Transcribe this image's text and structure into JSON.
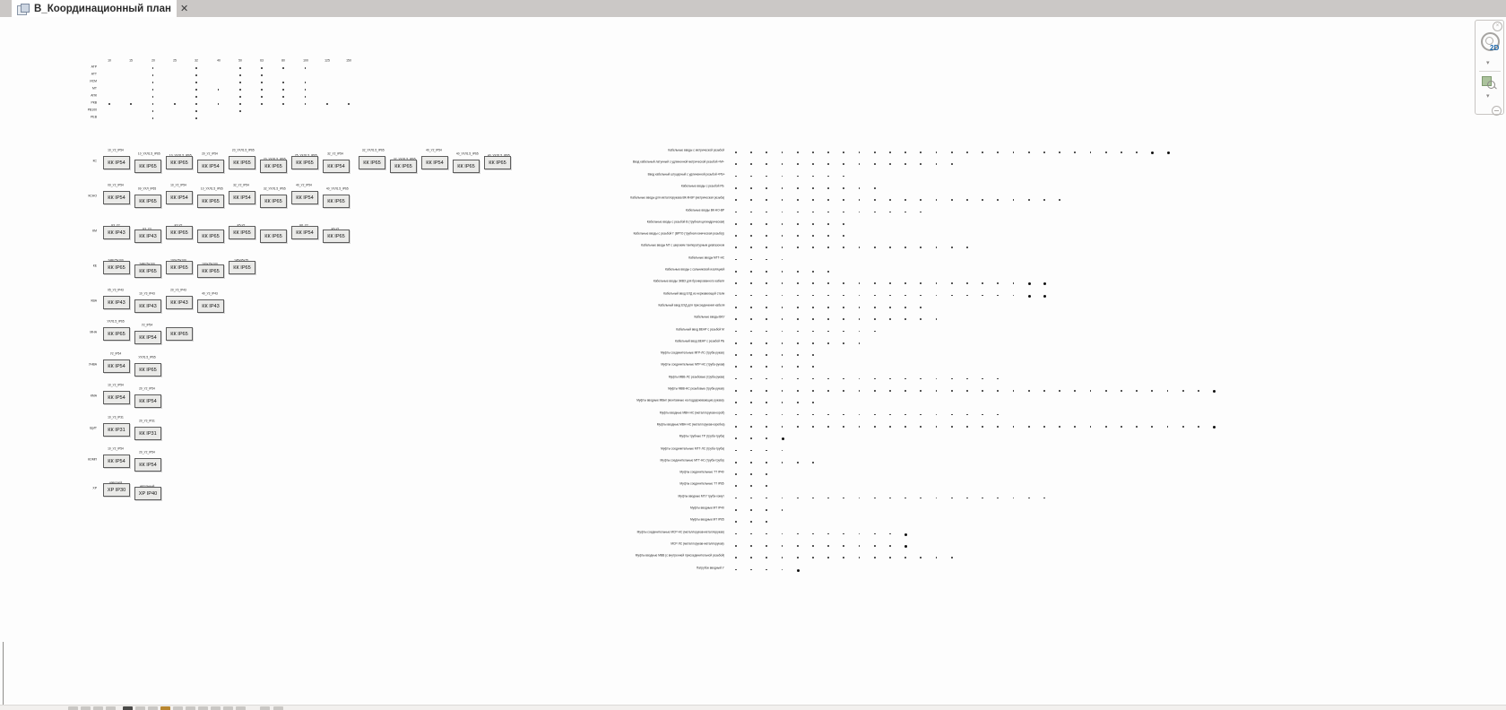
{
  "tab": {
    "title": "В_Координационный план",
    "close_glyph": "✕"
  },
  "colors": {
    "tabbar_bg": "#cbc8c6",
    "tab_active_bg": "#ffffff",
    "canvas_bg": "#fdfdfd",
    "box_fill": "#eaeae8",
    "box_border": "#5d5d5d",
    "dot": "#2e2e2e",
    "nav_2d_accent": "#1b66aa",
    "nav_zoom_green": "#abc29c"
  },
  "navbar": {
    "label_2d": "2D",
    "icons": [
      "close-icon",
      "steering-wheel-2d-icon",
      "chevron-down-icon",
      "zoom-region-icon",
      "chevron-down-icon",
      "minus-circle-icon"
    ]
  },
  "mini_table": {
    "col_headers": [
      "10",
      "15",
      "20",
      "25",
      "32",
      "40",
      "50",
      "63",
      "80",
      "100",
      "125",
      "150"
    ],
    "rows": [
      {
        "label": "АТР",
        "cols": [
          2,
          4,
          6,
          7,
          8,
          9
        ]
      },
      {
        "label": "АТТ",
        "cols": [
          2,
          4,
          6,
          7
        ]
      },
      {
        "label": "ИСМ",
        "cols": [
          2,
          4,
          6,
          7,
          8,
          9
        ]
      },
      {
        "label": "МТ",
        "cols": [
          2,
          4,
          5,
          6,
          7,
          8,
          9
        ]
      },
      {
        "label": "АПК",
        "cols": [
          2,
          4,
          6,
          7,
          8,
          9
        ]
      },
      {
        "label": "РКВ",
        "cols": [
          0,
          1,
          2,
          3,
          4,
          5,
          6,
          7,
          8,
          9,
          10,
          11
        ]
      },
      {
        "label": "РВ100",
        "cols": [
          2,
          4,
          6
        ]
      },
      {
        "label": "РЕВ",
        "cols": [
          2,
          4
        ]
      }
    ]
  },
  "gland_groups": [
    {
      "name": "КС",
      "boxes": [
        {
          "top": "10_У2_IP54",
          "label": "КК IP54"
        },
        {
          "top": "10_УХЛ1.5_IP65",
          "label": "КК IP65"
        },
        {
          "top": "10_УХЛ1.5_IP65\nвзрывозащищен.",
          "label": "КК IP65"
        },
        {
          "top": "20_У2_IP54",
          "label": "КК IP54"
        },
        {
          "top": "20_УХЛ1.5_IP65",
          "label": "КК IP65"
        },
        {
          "top": "20_УХЛ1.5_IP65\nвзрывозащищен.",
          "label": "КК IP65"
        },
        {
          "top": "25_УХЛ1.5_IP65\nвзрывозащищен.",
          "label": "КК IP65"
        },
        {
          "top": "32_У2_IP54",
          "label": "КК IP54"
        },
        {
          "top": "32_УХЛ1.5_IP65",
          "label": "КК IP65"
        },
        {
          "top": "32_УХЛ1.5_IP65\nвзрывозащищен.",
          "label": "КК IP65"
        },
        {
          "top": "40_У2_IP54",
          "label": "КК IP54"
        },
        {
          "top": "40_УХЛ1.5_IP65",
          "label": "КК IP65"
        },
        {
          "top": "40_УХЛ1.5_IP65\nвзрывозащищен.",
          "label": "КК IP65"
        }
      ]
    },
    {
      "name": "КСНО",
      "boxes": [
        {
          "top": "09_У2_IP54",
          "label": "КК IP54"
        },
        {
          "top": "09_УХЛ_IP65",
          "label": "КК IP65"
        },
        {
          "top": "10_У2_IP54",
          "label": "КК IP54"
        },
        {
          "top": "10_УХЛ1.5_IP65",
          "label": "КК IP65"
        },
        {
          "top": "32_У2_IP54",
          "label": "КК IP54"
        },
        {
          "top": "32_УХЛ1.5_IP65",
          "label": "КК IP65"
        },
        {
          "top": "40_У2_IP54",
          "label": "КК IP54"
        },
        {
          "top": "40_УХЛ1.5_IP65",
          "label": "КК IP65"
        }
      ]
    },
    {
      "name": "КМ",
      "boxes": [
        {
          "top": "К3_У2\nIP43",
          "label": "КК IP43"
        },
        {
          "top": "К3_У3\nIP43",
          "label": "КК IP43"
        },
        {
          "top": "К2-У2\nУХЛ1.5_IP65",
          "label": "КК IP65"
        },
        {
          "top": "К5-У2\nУХЛ1.5_IP65\nвзрывозащищен.",
          "label": "КК IP65"
        },
        {
          "top": "К5-У2\nУХЛ1.5_IP65",
          "label": "КК IP65"
        },
        {
          "top": "К5-У2\nIP65\nвзрывозащищен.",
          "label": "КК IP65"
        },
        {
          "top": "К6_У2\nIP54",
          "label": "КК IP54"
        },
        {
          "top": "К6-У2\nУХЛ1.5_IP65",
          "label": "КК IP65"
        }
      ]
    },
    {
      "name": "КЕ",
      "boxes": [
        {
          "top": "24В/75х100\n4 отверстия",
          "label": "КК IP65"
        },
        {
          "top": "24В/75х100\n6 отверстий",
          "label": "КК IP65"
        },
        {
          "top": "100х75х100\n7 отверстий",
          "label": "КК IP65"
        },
        {
          "top": "100х75х100\n9 отверстий",
          "label": "КК IP65"
        },
        {
          "top": "145х95х75\n12 отверстий",
          "label": "КК IP65"
        }
      ]
    },
    {
      "name": "КВА",
      "boxes": [
        {
          "top": "05_У3_IP43",
          "label": "КК IP43"
        },
        {
          "top": "10_У3_IP43",
          "label": "КК IP43"
        },
        {
          "top": "20_У3_IP43",
          "label": "КК IP43"
        },
        {
          "top": "40_У3_IP43",
          "label": "КК IP43"
        }
      ]
    },
    {
      "name": "МНА",
      "boxes": [
        {
          "top": "УХЛ1.5_IP65",
          "label": "КК IP65"
        },
        {
          "top": "У2_IP54",
          "label": "КК IP54"
        },
        {
          "top": "УХЛ1.5_IP65\nнерж. покрытие",
          "label": "КК IP65"
        }
      ]
    },
    {
      "name": "УНВА",
      "boxes": [
        {
          "top": "У2_IP54",
          "label": "КК IP54"
        },
        {
          "top": "УХЛ1.5_IP65",
          "label": "КК IP65"
        }
      ]
    },
    {
      "name": "КМА",
      "boxes": [
        {
          "top": "10_У2_IP54",
          "label": "КК IP54"
        },
        {
          "top": "20_У2_IP54",
          "label": "КК IP54"
        }
      ]
    },
    {
      "name": "ЩИТ",
      "boxes": [
        {
          "top": "10_У3_IP31",
          "label": "КК IP31"
        },
        {
          "top": "20_У3_IP31",
          "label": "КК IP31"
        }
      ]
    },
    {
      "name": "КОМП",
      "boxes": [
        {
          "top": "10_У2_IP54",
          "label": "КК IP54"
        },
        {
          "top": "20_У2_IP54",
          "label": "КК IP54"
        }
      ]
    },
    {
      "name": "ХР",
      "boxes": [
        {
          "top": "навесной\nВР_30",
          "label": "ХР IP30"
        },
        {
          "top": "напольный\nВР_40",
          "label": "ХР IP40"
        }
      ]
    }
  ],
  "matrix": {
    "rows": [
      {
        "label": "Кабельные вводы с метрической резьбой",
        "dots": 29,
        "bold_tail": 2
      },
      {
        "label": "Ввод кабельный латунный с удлиненной метрической резьбой «М»",
        "dots": 15,
        "bold_tail": 0
      },
      {
        "label": "Ввод кабельный штуцерный с удлиненной резьбой «РБ»",
        "dots": 8,
        "bold_tail": 0
      },
      {
        "label": "Кабельные вводы с резьбой РБ",
        "dots": 10,
        "bold_tail": 0
      },
      {
        "label": "Кабельные вводы для металлорукава ВК-М-ВР (метрическая резьба)",
        "dots": 22,
        "bold_tail": 0
      },
      {
        "label": "Кабельные вводы ВК-НО-ВР",
        "dots": 13,
        "bold_tail": 0
      },
      {
        "label": "Кабельные вводы с резьбой В (трубная цилиндрическая)",
        "dots": 8,
        "bold_tail": 0
      },
      {
        "label": "Кабельные вводы с резьбой Г (ВРТО (трубная коническая резьба))",
        "dots": 8,
        "bold_tail": 0
      },
      {
        "label": "Кабельные вводы МГ с широким температурным диапазоном",
        "dots": 16,
        "bold_tail": 0
      },
      {
        "label": "Кабельные вводы МГТ-НС",
        "dots": 4,
        "bold_tail": 0
      },
      {
        "label": "Кабельные вводы с сальниковой изоляцией",
        "dots": 7,
        "bold_tail": 0
      },
      {
        "label": "Кабельные вводы ЭКВЗ для бронированного кабеля",
        "dots": 21,
        "bold_tail": 2
      },
      {
        "label": "Кабельный ввод ЕХД из нержавеющей стали",
        "dots": 21,
        "bold_tail": 2
      },
      {
        "label": "Кабельный ввод ЕХД для присоединения кабеля",
        "dots": 13,
        "bold_tail": 0
      },
      {
        "label": "Кабельные вводы ВКУ",
        "dots": 14,
        "bold_tail": 0
      },
      {
        "label": "Кабельный ввод ВЕНР с резьбой М",
        "dots": 10,
        "bold_tail": 0
      },
      {
        "label": "Кабельный ввод ВЕНР с резьбой РБ",
        "dots": 9,
        "bold_tail": 0
      },
      {
        "label": "Муфты соединительные МГР-ЛС (труба-рукав)",
        "dots": 6,
        "bold_tail": 0
      },
      {
        "label": "Муфты соединительные МГР-НС (труба-рукав)",
        "dots": 6,
        "bold_tail": 0
      },
      {
        "label": "Муфты МВВ-ЛС резьбовые (труба-рукав)",
        "dots": 18,
        "bold_tail": 0
      },
      {
        "label": "Муфты МВВ-НС резьбовые (труба-рукав)",
        "dots": 32,
        "bold_tail": 1
      },
      {
        "label": "Муфты вводные МВмг (монтажные на поддерживающие рукава)",
        "dots": 6,
        "bold_tail": 0
      },
      {
        "label": "Муфты вводные МВН-НС (металлорукав-короб)",
        "dots": 18,
        "bold_tail": 0
      },
      {
        "label": "Муфты вводные МВН-НС (металлорукав-коробка)",
        "dots": 32,
        "bold_tail": 1
      },
      {
        "label": "Муфты трубные ТР (труба-труба)",
        "dots": 4,
        "bold_tail": 1
      },
      {
        "label": "Муфты соединительные МТТ-ЛС (труба-труба)",
        "dots": 4,
        "bold_tail": 0
      },
      {
        "label": "Муфты соединительные МТТ-НС (труба-труба)",
        "dots": 6,
        "bold_tail": 0
      },
      {
        "label": "Муфты соединительные ТТ IP40",
        "dots": 3,
        "bold_tail": 0
      },
      {
        "label": "Муфты соединительные ТТ IP65",
        "dots": 3,
        "bold_tail": 0
      },
      {
        "label": "Муфты вводные МТУ труба-хомут",
        "dots": 21,
        "bold_tail": 0
      },
      {
        "label": "Муфты вводные МТ IP40",
        "dots": 4,
        "bold_tail": 0
      },
      {
        "label": "Муфты вводные МТ IP65",
        "dots": 3,
        "bold_tail": 0
      },
      {
        "label": "Муфты соединительные МСР-НС (металлорукав-металлорукав)",
        "dots": 12,
        "bold_tail": 1
      },
      {
        "label": "МСР-ЛС (металлорукав-металлорукав)",
        "dots": 12,
        "bold_tail": 1
      },
      {
        "label": "Муфты вводные МВВ (с внутренней присоединительной резьбой)",
        "dots": 15,
        "bold_tail": 0
      },
      {
        "label": "Патрубок вводный У",
        "dots": 5,
        "bold_tail": 1
      }
    ]
  }
}
